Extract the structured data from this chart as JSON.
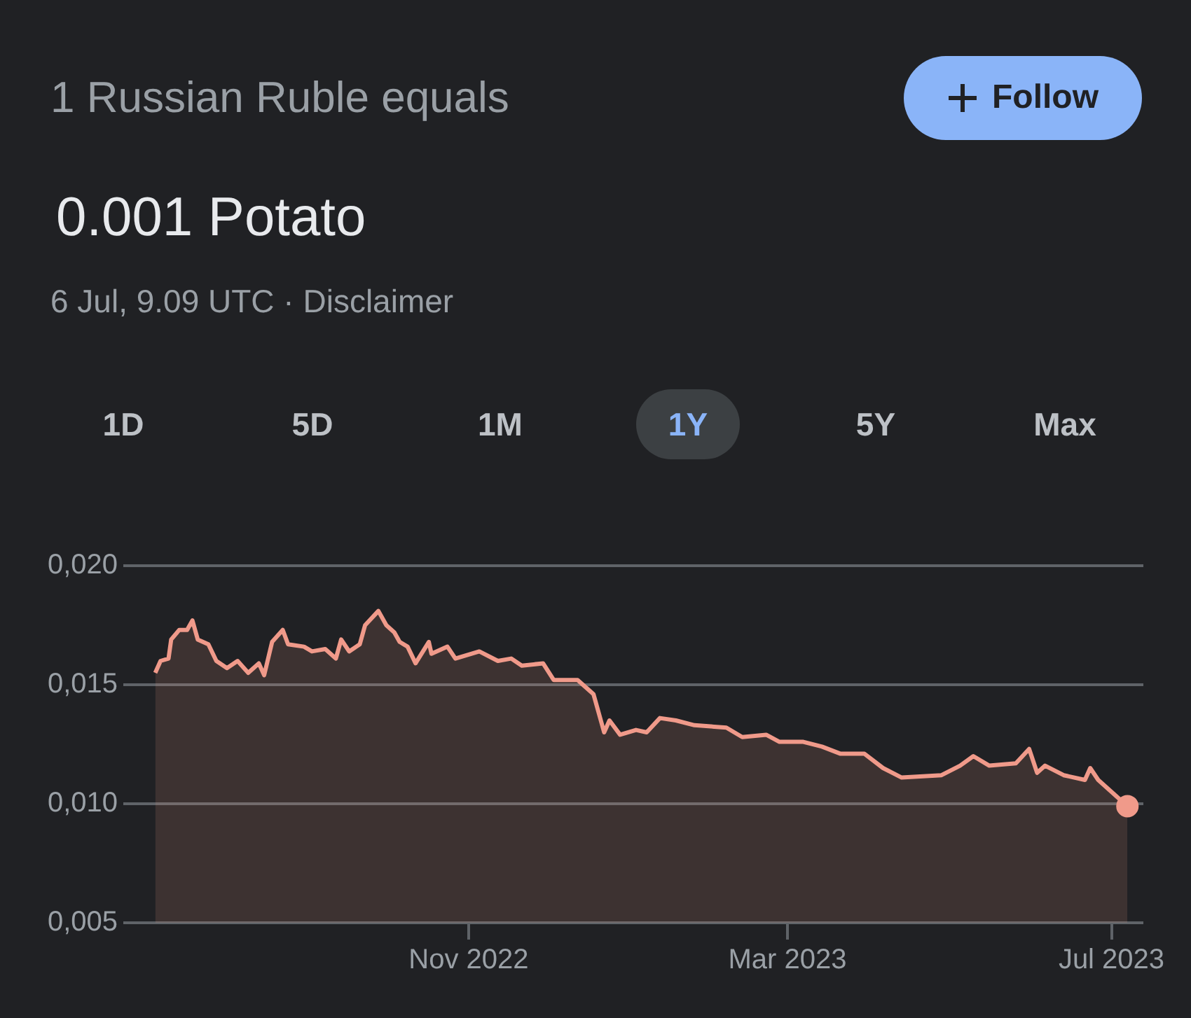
{
  "chart_data": {
    "type": "area",
    "title": "1 Russian Ruble equals",
    "subtitle": "0.001 Potato",
    "annotations": [
      "6 Jul, 9.09 UTC · Disclaimer",
      "1D",
      "5D",
      "1M",
      "1Y",
      "5Y",
      "Max",
      "Follow"
    ],
    "x": [
      "2022-07-06",
      "2022-07-08",
      "2022-07-11",
      "2022-07-12",
      "2022-07-15",
      "2022-07-18",
      "2022-07-20",
      "2022-07-22",
      "2022-07-26",
      "2022-07-29",
      "2022-08-02",
      "2022-08-06",
      "2022-08-10",
      "2022-08-14",
      "2022-08-16",
      "2022-08-19",
      "2022-08-23",
      "2022-08-25",
      "2022-08-31",
      "2022-09-03",
      "2022-09-08",
      "2022-09-12",
      "2022-09-14",
      "2022-09-17",
      "2022-09-21",
      "2022-09-23",
      "2022-09-28",
      "2022-10-01",
      "2022-10-04",
      "2022-10-06",
      "2022-10-09",
      "2022-10-12",
      "2022-10-17",
      "2022-10-18",
      "2022-10-24",
      "2022-10-27",
      "2022-11-05",
      "2022-11-12",
      "2022-11-17",
      "2022-11-21",
      "2022-11-29",
      "2022-12-03",
      "2022-12-12",
      "2022-12-18",
      "2022-12-22",
      "2022-12-24",
      "2022-12-28",
      "2023-01-03",
      "2023-01-07",
      "2023-01-12",
      "2023-01-18",
      "2023-01-25",
      "2023-02-06",
      "2023-02-12",
      "2023-02-21",
      "2023-02-26",
      "2023-03-07",
      "2023-03-14",
      "2023-03-21",
      "2023-03-30",
      "2023-04-06",
      "2023-04-13",
      "2023-04-28",
      "2023-05-05",
      "2023-05-10",
      "2023-05-16",
      "2023-05-26",
      "2023-05-31",
      "2023-06-03",
      "2023-06-06",
      "2023-06-13",
      "2023-06-21",
      "2023-06-23",
      "2023-06-26",
      "2023-07-01",
      "2023-07-07"
    ],
    "series": [
      {
        "color": "#f09a8a",
        "values": [
          0.0155,
          0.016,
          0.0161,
          0.0169,
          0.0173,
          0.0173,
          0.0177,
          0.0169,
          0.0167,
          0.016,
          0.0157,
          0.016,
          0.0155,
          0.0159,
          0.0154,
          0.0168,
          0.0173,
          0.0167,
          0.0166,
          0.0164,
          0.0165,
          0.0161,
          0.0169,
          0.0164,
          0.0167,
          0.0175,
          0.0181,
          0.0175,
          0.0172,
          0.0168,
          0.0166,
          0.0159,
          0.0168,
          0.0163,
          0.0166,
          0.0161,
          0.0164,
          0.016,
          0.0161,
          0.0158,
          0.0159,
          0.0152,
          0.0152,
          0.0146,
          0.013,
          0.0135,
          0.0129,
          0.0131,
          0.013,
          0.0136,
          0.0135,
          0.0133,
          0.0132,
          0.0128,
          0.0129,
          0.0126,
          0.0126,
          0.0124,
          0.0121,
          0.0121,
          0.0115,
          0.0111,
          0.0112,
          0.0116,
          0.012,
          0.0116,
          0.0117,
          0.0123,
          0.0113,
          0.0116,
          0.0112,
          0.011,
          0.0115,
          0.011,
          0.0105,
          0.0099
        ]
      }
    ],
    "xlim": [
      "2022-06-24",
      "2023-07-13"
    ],
    "xticks": [
      {
        "value": "2022-11-01",
        "label": "Nov 2022"
      },
      {
        "value": "2023-03-01",
        "label": "Mar 2023"
      },
      {
        "value": "2023-07-01",
        "label": "Jul 2023"
      }
    ],
    "ylim": [
      0.005,
      0.02
    ],
    "yticks": [
      {
        "value": 0.005,
        "label": "0,005"
      },
      {
        "value": 0.01,
        "label": "0,010"
      },
      {
        "value": 0.015,
        "label": "0,015"
      },
      {
        "value": 0.02,
        "label": "0,020"
      }
    ],
    "grid": "y"
  }
}
